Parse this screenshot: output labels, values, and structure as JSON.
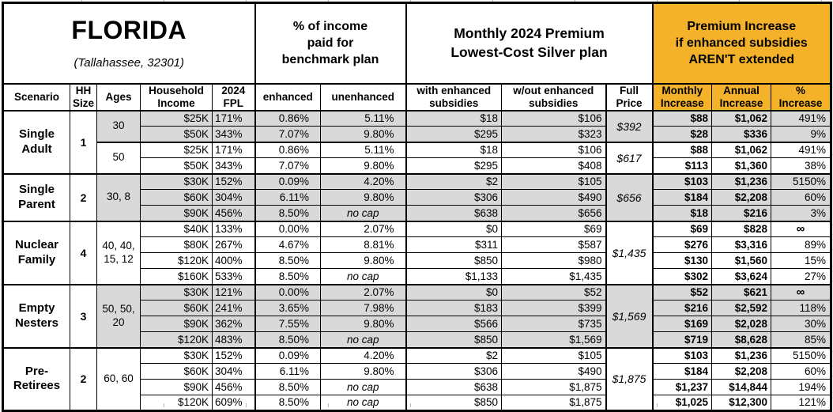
{
  "title_block": {
    "state": "FLORIDA",
    "location": "(Tallahassee, 32301)"
  },
  "section_headers": {
    "benchmark": "% of income\npaid for\nbenchmark plan",
    "premium": "Monthly 2024 Premium\nLowest-Cost Silver plan",
    "increase": "Premium Increase\nif enhanced subsidies\nAREN'T extended"
  },
  "columns": {
    "scenario": "Scenario",
    "hh_size": "HH\nSize",
    "ages": "Ages",
    "income": "Household\nIncome",
    "fpl": "2024\nFPL",
    "enhanced": "enhanced",
    "unenhanced": "unenhanced",
    "with_subsidies": "with enhanced\nsubsidies",
    "without_subsidies": "w/out enhanced\nsubsidies",
    "full_price": "Full\nPrice",
    "monthly_increase": "Monthly\nIncrease",
    "annual_increase": "Annual\nIncrease",
    "pct_increase": "%\nIncrease"
  },
  "colors": {
    "accent_orange": "#F3B229",
    "row_shade_gray": "#D9D9D9",
    "border_black": "#000000"
  },
  "groups": [
    {
      "scenario": "Single\nAdult",
      "hh_size": "1",
      "subgroups": [
        {
          "ages": "30",
          "full_price": "$392",
          "shaded": true,
          "rows": [
            {
              "income": "$25K",
              "fpl": "171%",
              "enhanced": "0.86%",
              "unenhanced": "5.11%",
              "with_subsidies": "$18",
              "without_subsidies": "$106",
              "monthly_increase": "$88",
              "annual_increase": "$1,062",
              "pct_increase": "491%"
            },
            {
              "income": "$50K",
              "fpl": "343%",
              "enhanced": "7.07%",
              "unenhanced": "9.80%",
              "with_subsidies": "$295",
              "without_subsidies": "$323",
              "monthly_increase": "$28",
              "annual_increase": "$336",
              "pct_increase": "9%"
            }
          ]
        },
        {
          "ages": "50",
          "full_price": "$617",
          "shaded": false,
          "rows": [
            {
              "income": "$25K",
              "fpl": "171%",
              "enhanced": "0.86%",
              "unenhanced": "5.11%",
              "with_subsidies": "$18",
              "without_subsidies": "$106",
              "monthly_increase": "$88",
              "annual_increase": "$1,062",
              "pct_increase": "491%"
            },
            {
              "income": "$50K",
              "fpl": "343%",
              "enhanced": "7.07%",
              "unenhanced": "9.80%",
              "with_subsidies": "$295",
              "without_subsidies": "$408",
              "monthly_increase": "$113",
              "annual_increase": "$1,360",
              "pct_increase": "38%"
            }
          ]
        }
      ]
    },
    {
      "scenario": "Single\nParent",
      "hh_size": "2",
      "subgroups": [
        {
          "ages": "30, 8",
          "full_price": "$656",
          "shaded": true,
          "rows": [
            {
              "income": "$30K",
              "fpl": "152%",
              "enhanced": "0.09%",
              "unenhanced": "4.20%",
              "with_subsidies": "$2",
              "without_subsidies": "$105",
              "monthly_increase": "$103",
              "annual_increase": "$1,236",
              "pct_increase": "5150%"
            },
            {
              "income": "$60K",
              "fpl": "304%",
              "enhanced": "6.11%",
              "unenhanced": "9.80%",
              "with_subsidies": "$306",
              "without_subsidies": "$490",
              "monthly_increase": "$184",
              "annual_increase": "$2,208",
              "pct_increase": "60%"
            },
            {
              "income": "$90K",
              "fpl": "456%",
              "enhanced": "8.50%",
              "unenhanced": "no cap",
              "with_subsidies": "$638",
              "without_subsidies": "$656",
              "monthly_increase": "$18",
              "annual_increase": "$216",
              "pct_increase": "3%"
            }
          ]
        }
      ]
    },
    {
      "scenario": "Nuclear\nFamily",
      "hh_size": "4",
      "subgroups": [
        {
          "ages": "40, 40,\n15, 12",
          "full_price": "$1,435",
          "shaded": false,
          "rows": [
            {
              "income": "$40K",
              "fpl": "133%",
              "enhanced": "0.00%",
              "unenhanced": "2.07%",
              "with_subsidies": "$0",
              "without_subsidies": "$69",
              "monthly_increase": "$69",
              "annual_increase": "$828",
              "pct_increase": "∞"
            },
            {
              "income": "$80K",
              "fpl": "267%",
              "enhanced": "4.67%",
              "unenhanced": "8.81%",
              "with_subsidies": "$311",
              "without_subsidies": "$587",
              "monthly_increase": "$276",
              "annual_increase": "$3,316",
              "pct_increase": "89%"
            },
            {
              "income": "$120K",
              "fpl": "400%",
              "enhanced": "8.50%",
              "unenhanced": "9.80%",
              "with_subsidies": "$850",
              "without_subsidies": "$980",
              "monthly_increase": "$130",
              "annual_increase": "$1,560",
              "pct_increase": "15%"
            },
            {
              "income": "$160K",
              "fpl": "533%",
              "enhanced": "8.50%",
              "unenhanced": "no cap",
              "with_subsidies": "$1,133",
              "without_subsidies": "$1,435",
              "monthly_increase": "$302",
              "annual_increase": "$3,624",
              "pct_increase": "27%"
            }
          ]
        }
      ]
    },
    {
      "scenario": "Empty\nNesters",
      "hh_size": "3",
      "subgroups": [
        {
          "ages": "50, 50,\n20",
          "full_price": "$1,569",
          "shaded": true,
          "rows": [
            {
              "income": "$30K",
              "fpl": "121%",
              "enhanced": "0.00%",
              "unenhanced": "2.07%",
              "with_subsidies": "$0",
              "without_subsidies": "$52",
              "monthly_increase": "$52",
              "annual_increase": "$621",
              "pct_increase": "∞"
            },
            {
              "income": "$60K",
              "fpl": "241%",
              "enhanced": "3.65%",
              "unenhanced": "7.98%",
              "with_subsidies": "$183",
              "without_subsidies": "$399",
              "monthly_increase": "$216",
              "annual_increase": "$2,592",
              "pct_increase": "118%"
            },
            {
              "income": "$90K",
              "fpl": "362%",
              "enhanced": "7.55%",
              "unenhanced": "9.80%",
              "with_subsidies": "$566",
              "without_subsidies": "$735",
              "monthly_increase": "$169",
              "annual_increase": "$2,028",
              "pct_increase": "30%"
            },
            {
              "income": "$120K",
              "fpl": "483%",
              "enhanced": "8.50%",
              "unenhanced": "no cap",
              "with_subsidies": "$850",
              "without_subsidies": "$1,569",
              "monthly_increase": "$719",
              "annual_increase": "$8,628",
              "pct_increase": "85%"
            }
          ]
        }
      ]
    },
    {
      "scenario": "Pre-\nRetirees",
      "hh_size": "2",
      "subgroups": [
        {
          "ages": "60, 60",
          "full_price": "$1,875",
          "shaded": false,
          "rows": [
            {
              "income": "$30K",
              "fpl": "152%",
              "enhanced": "0.09%",
              "unenhanced": "4.20%",
              "with_subsidies": "$2",
              "without_subsidies": "$105",
              "monthly_increase": "$103",
              "annual_increase": "$1,236",
              "pct_increase": "5150%"
            },
            {
              "income": "$60K",
              "fpl": "304%",
              "enhanced": "6.11%",
              "unenhanced": "9.80%",
              "with_subsidies": "$306",
              "without_subsidies": "$490",
              "monthly_increase": "$184",
              "annual_increase": "$2,208",
              "pct_increase": "60%"
            },
            {
              "income": "$90K",
              "fpl": "456%",
              "enhanced": "8.50%",
              "unenhanced": "no cap",
              "with_subsidies": "$638",
              "without_subsidies": "$1,875",
              "monthly_increase": "$1,237",
              "annual_increase": "$14,844",
              "pct_increase": "194%"
            },
            {
              "income": "$120K",
              "fpl": "609%",
              "enhanced": "8.50%",
              "unenhanced": "no cap",
              "with_subsidies": "$850",
              "without_subsidies": "$1,875",
              "monthly_increase": "$1,025",
              "annual_increase": "$12,300",
              "pct_increase": "121%"
            }
          ]
        }
      ]
    }
  ]
}
